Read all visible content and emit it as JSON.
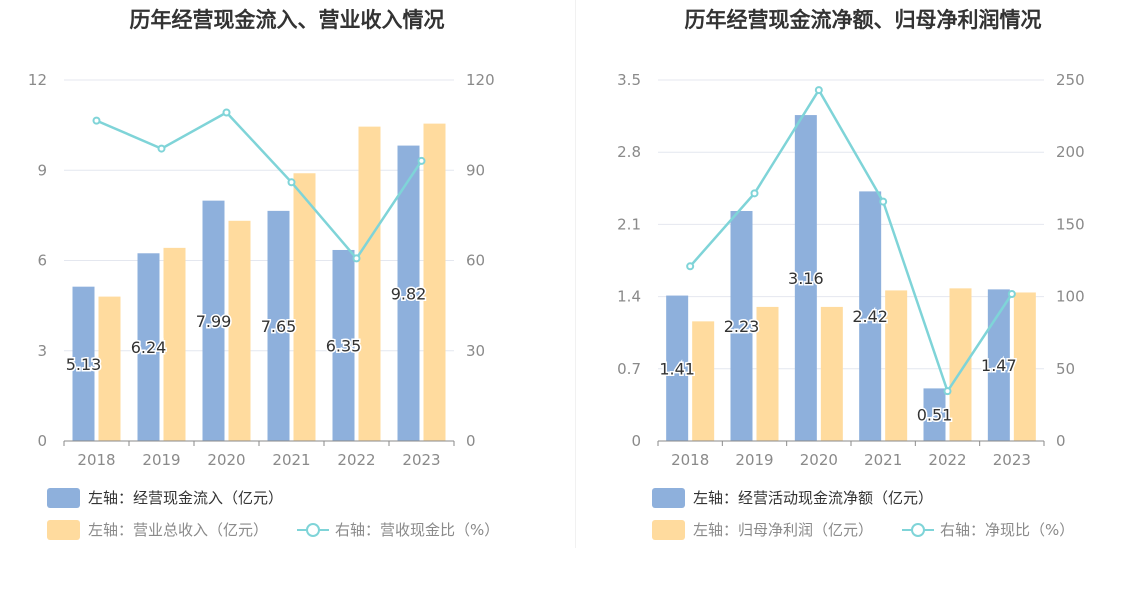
{
  "chart_data": [
    {
      "type": "bar",
      "title": "历年经营现金流入、营业收入情况",
      "categories": [
        "2018",
        "2019",
        "2020",
        "2021",
        "2022",
        "2023"
      ],
      "y_left_ticks": [
        "0",
        "3",
        "6",
        "9",
        "12"
      ],
      "y_right_ticks": [
        "0",
        "30",
        "60",
        "90",
        "120"
      ],
      "ylim_left": [
        0,
        12
      ],
      "ylim_right": [
        0,
        120
      ],
      "series": [
        {
          "name": "左轴：经营现金流入（亿元）",
          "axis": "left",
          "kind": "bar",
          "color": "#8eb0dc",
          "values": [
            5.13,
            6.24,
            7.99,
            7.65,
            6.35,
            9.82
          ],
          "labels": [
            "5.13",
            "6.24",
            "7.99",
            "7.65",
            "6.35",
            "9.82"
          ]
        },
        {
          "name": "左轴：营业总收入（亿元）",
          "axis": "left",
          "kind": "bar",
          "color": "#ffdb9e",
          "values": [
            4.8,
            6.42,
            7.32,
            8.9,
            10.45,
            10.55
          ]
        },
        {
          "name": "右轴：营收现金比（%）",
          "axis": "right",
          "kind": "line",
          "color": "#7fd4d8",
          "values": [
            106.5,
            97.2,
            109.2,
            86.0,
            60.7,
            93.1
          ]
        }
      ]
    },
    {
      "type": "bar",
      "title": "历年经营现金流净额、归母净利润情况",
      "categories": [
        "2018",
        "2019",
        "2020",
        "2021",
        "2022",
        "2023"
      ],
      "y_left_ticks": [
        "0",
        "0.7",
        "1.4",
        "2.1",
        "2.8",
        "3.5"
      ],
      "y_right_ticks": [
        "0",
        "50",
        "100",
        "150",
        "200",
        "250"
      ],
      "ylim_left": [
        0,
        3.5
      ],
      "ylim_right": [
        0,
        250
      ],
      "series": [
        {
          "name": "左轴：经营活动现金流净额（亿元）",
          "axis": "left",
          "kind": "bar",
          "color": "#8eb0dc",
          "values": [
            1.41,
            2.23,
            3.16,
            2.42,
            0.51,
            1.47
          ],
          "labels": [
            "1.41",
            "2.23",
            "3.16",
            "2.42",
            "0.51",
            "1.47"
          ]
        },
        {
          "name": "左轴：归母净利润（亿元）",
          "axis": "left",
          "kind": "bar",
          "color": "#ffdb9e",
          "values": [
            1.16,
            1.3,
            1.3,
            1.46,
            1.48,
            1.44
          ]
        },
        {
          "name": "右轴：净现比（%）",
          "axis": "right",
          "kind": "line",
          "color": "#7fd4d8",
          "values": [
            121.0,
            171.5,
            243.0,
            165.8,
            34.5,
            101.8
          ]
        }
      ]
    }
  ]
}
